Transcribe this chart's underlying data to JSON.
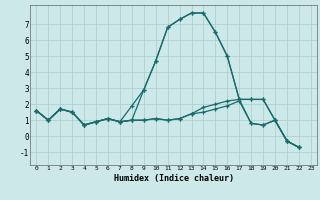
{
  "xlabel": "Humidex (Indice chaleur)",
  "bg_color": "#cce8e8",
  "grid_color": "#aacccc",
  "line_color": "#1a6b6b",
  "xlim": [
    -0.5,
    23.5
  ],
  "ylim": [
    -1.8,
    8.2
  ],
  "xticks": [
    0,
    1,
    2,
    3,
    4,
    5,
    6,
    7,
    8,
    9,
    10,
    11,
    12,
    13,
    14,
    15,
    16,
    17,
    18,
    19,
    20,
    21,
    22,
    23
  ],
  "yticks": [
    -1,
    0,
    1,
    2,
    3,
    4,
    5,
    6,
    7
  ],
  "series": [
    [
      1.6,
      1.0,
      1.7,
      1.5,
      0.7,
      0.9,
      1.1,
      0.9,
      1.0,
      1.0,
      1.1,
      1.0,
      1.1,
      1.4,
      1.5,
      1.7,
      1.9,
      2.2,
      0.8,
      0.7,
      1.0,
      -0.3,
      -0.7
    ],
    [
      1.6,
      1.0,
      1.7,
      1.5,
      0.7,
      0.9,
      1.1,
      0.9,
      1.0,
      2.9,
      4.7,
      6.8,
      7.3,
      7.7,
      7.7,
      6.5,
      5.0,
      2.3,
      2.3,
      2.3,
      1.0,
      -0.3,
      -0.7
    ],
    [
      1.6,
      1.0,
      1.7,
      1.5,
      0.7,
      0.9,
      1.1,
      0.9,
      1.9,
      2.9,
      4.7,
      6.8,
      7.3,
      7.7,
      7.7,
      6.5,
      5.0,
      2.3,
      2.3,
      2.3,
      1.0,
      -0.3,
      -0.7
    ],
    [
      1.6,
      1.0,
      1.7,
      1.5,
      0.7,
      0.9,
      1.1,
      0.9,
      1.0,
      1.0,
      1.1,
      1.0,
      1.1,
      1.4,
      1.8,
      2.0,
      2.2,
      2.3,
      0.8,
      0.7,
      1.0,
      -0.3,
      -0.7
    ]
  ],
  "x_values": [
    0,
    1,
    2,
    3,
    4,
    5,
    6,
    7,
    8,
    9,
    10,
    11,
    12,
    13,
    14,
    15,
    16,
    17,
    18,
    19,
    20,
    21,
    22
  ]
}
